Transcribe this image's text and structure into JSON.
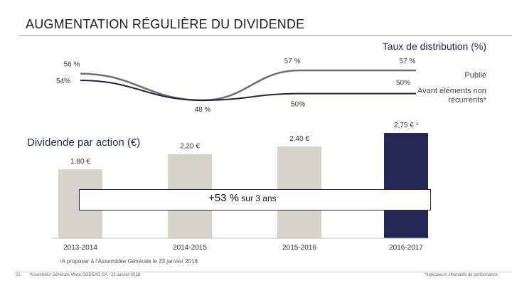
{
  "header": {
    "title": "AUGMENTATION RÉGULIÈRE DU DIVIDENDE"
  },
  "chart_data": [
    {
      "type": "line",
      "title": "Taux de distribution (%)",
      "categories": [
        "2013-2014",
        "2014-2015",
        "2015-2016",
        "2016-2017"
      ],
      "series": [
        {
          "name": "Publié",
          "values": [
            56,
            48,
            57,
            57
          ],
          "labels": [
            "56 %",
            "48 %",
            "57 %",
            "57 %"
          ],
          "color": "#6e6e6e"
        },
        {
          "name": "Avant éléments non récurrents*",
          "values": [
            54,
            48,
            50,
            50
          ],
          "labels": [
            "54%",
            "",
            "50%",
            "50%"
          ],
          "color": "#1f2147"
        }
      ],
      "legend": [
        "Publié",
        "Avant éléments non récurrents*"
      ]
    },
    {
      "type": "bar",
      "title": "Dividende par action (€)",
      "categories": [
        "2013-2014",
        "2014-2015",
        "2015-2016",
        "2016-2017"
      ],
      "values": [
        1.8,
        2.2,
        2.4,
        2.75
      ],
      "value_labels": [
        "1,80 €",
        "2,20 €",
        "2,40 €",
        "2,75 € ¹"
      ],
      "colors": [
        "#d6d3ca",
        "#d6d3ca",
        "#d6d3ca",
        "#242654"
      ],
      "ylim": [
        0,
        2.75
      ]
    }
  ],
  "banner": {
    "main": "+53 %",
    "sub": " sur 3 ans"
  },
  "footnote": "¹A proposer à l’Assemblée Générale le 23 janvier 2018",
  "footer": {
    "page": "21",
    "left": "Assemblée Générale Mixte SODEXO SA - 23 janvier 2018",
    "right": "*Indicateurs alternatifs de performance"
  }
}
